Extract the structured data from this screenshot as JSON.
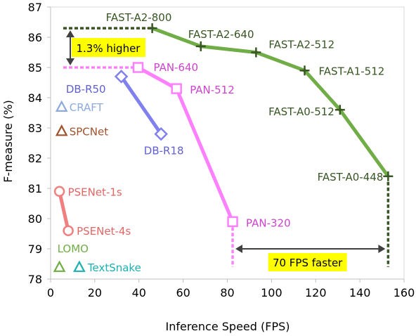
{
  "chart_data": {
    "type": "scatter",
    "title": "",
    "xlabel": "Inference Speed (FPS)",
    "ylabel": "F-measure (%)",
    "xlim": [
      0,
      160
    ],
    "ylim": [
      78,
      87
    ],
    "xticks": [
      0,
      20,
      40,
      60,
      80,
      100,
      120,
      140,
      160
    ],
    "yticks": [
      78,
      79,
      80,
      81,
      82,
      83,
      84,
      85,
      86,
      87
    ],
    "grid": false,
    "colors": {
      "fast": "#70AD47",
      "fast_marker": "#375623",
      "fast_label": "#375623",
      "pan": "#FF80FF",
      "pan_label": "#CC44CC",
      "db": "#8080EE",
      "db_label": "#6060D0",
      "psenet": "#F08080",
      "psenet_label": "#E06666",
      "craft": "#8EA9DB",
      "spcnet": "#A0522D",
      "lomo": "#70AD47",
      "textsnake": "#1CB0B0",
      "highlight_box": "#FFFF00",
      "annotation_line": "#375623"
    },
    "series": [
      {
        "name": "FAST",
        "marker": "plus",
        "points": [
          {
            "label": "FAST-A2-800",
            "x": 46,
            "y": 86.3
          },
          {
            "label": "FAST-A2-640",
            "x": 68,
            "y": 85.7
          },
          {
            "label": "FAST-A2-512",
            "x": 93,
            "y": 85.5
          },
          {
            "label": "FAST-A1-512",
            "x": 115,
            "y": 84.9
          },
          {
            "label": "FAST-A0-512",
            "x": 131,
            "y": 83.6
          },
          {
            "label": "FAST-A0-448",
            "x": 152.8,
            "y": 81.4
          }
        ]
      },
      {
        "name": "PAN",
        "marker": "square",
        "points": [
          {
            "label": "PAN-640",
            "x": 39.6,
            "y": 85.0
          },
          {
            "label": "PAN-512",
            "x": 57,
            "y": 84.3
          },
          {
            "label": "PAN-320",
            "x": 82.4,
            "y": 79.9
          }
        ]
      },
      {
        "name": "DB",
        "marker": "diamond",
        "points": [
          {
            "label": "DB-R50",
            "x": 32,
            "y": 84.7
          },
          {
            "label": "DB-R18",
            "x": 50,
            "y": 82.8
          }
        ]
      },
      {
        "name": "PSENet",
        "marker": "circle",
        "points": [
          {
            "label": "PSENet-1s",
            "x": 4,
            "y": 80.9
          },
          {
            "label": "PSENet-4s",
            "x": 8,
            "y": 79.6
          }
        ]
      },
      {
        "name": "CRAFT",
        "marker": "triangle",
        "points": [
          {
            "label": "CRAFT",
            "x": 5,
            "y": 83.7
          }
        ]
      },
      {
        "name": "SPCNet",
        "marker": "triangle",
        "points": [
          {
            "label": "SPCNet",
            "x": 5,
            "y": 82.9
          }
        ]
      },
      {
        "name": "LOMO",
        "marker": "triangle",
        "points": [
          {
            "label": "LOMO",
            "x": 4,
            "y": 78.4
          }
        ]
      },
      {
        "name": "TextSnake",
        "marker": "triangle",
        "points": [
          {
            "label": "TextSnake",
            "x": 13,
            "y": 78.4
          }
        ]
      }
    ],
    "annotations": [
      {
        "text": "1.3% higher",
        "x_from": 0,
        "x_to": 46,
        "y_top": 86.3,
        "y_bottom": 85.0
      },
      {
        "text": "70 FPS faster",
        "x_from": 82.4,
        "x_to": 152.8,
        "y_bottom": 78.4
      }
    ]
  }
}
